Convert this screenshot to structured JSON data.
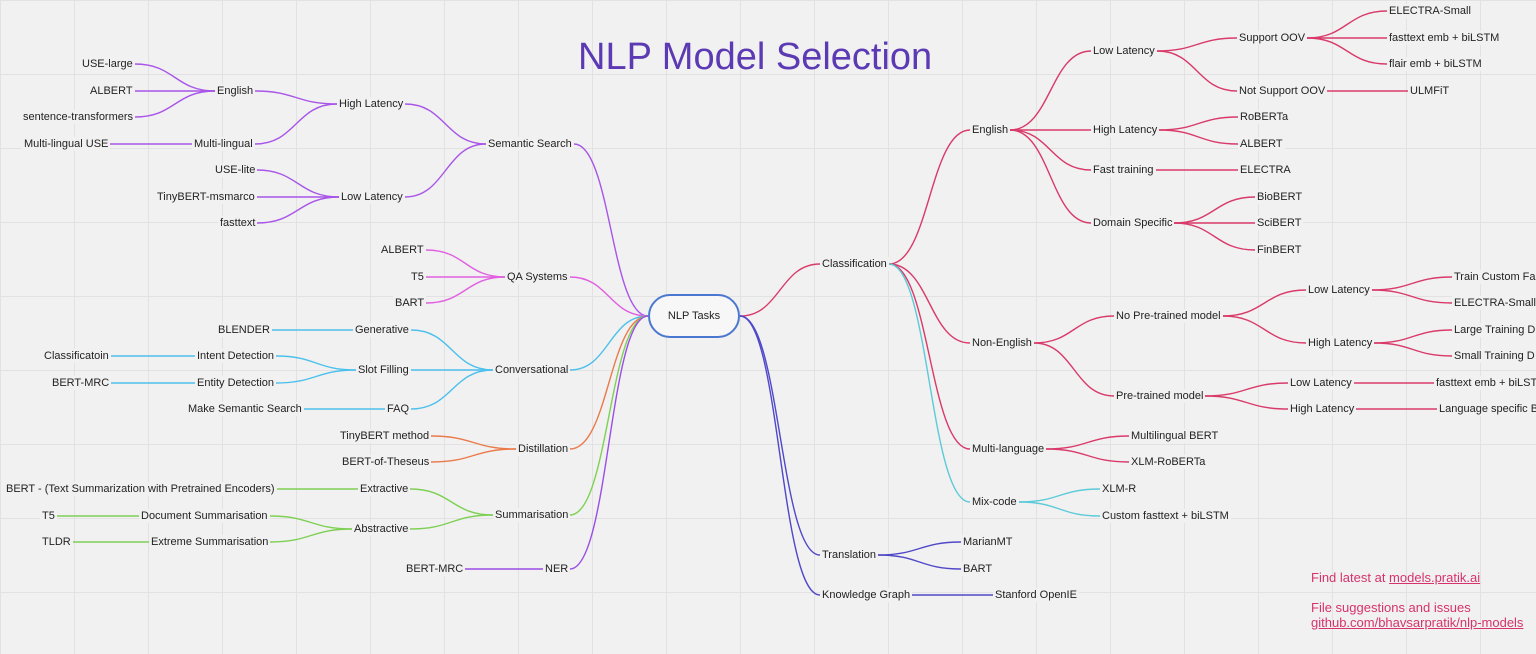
{
  "title": "NLP Model Selection",
  "colors": {
    "semantic": "#a855e8",
    "qa": "#e060e0",
    "conversational": "#4cc0ec",
    "distillation": "#ea7a4a",
    "summarisation": "#7ed054",
    "ner": "#9a4ee6",
    "classification": "#d93a6a",
    "mixcode": "#5ccad8",
    "translation": "#5048c8",
    "root_border": "#4a78d0",
    "title": "#5b3ab3",
    "footer": "#d6336c"
  },
  "mindmap": {
    "root": "NLP Tasks",
    "semantic_search": {
      "label": "Semantic Search",
      "high_latency": {
        "label": "High Latency",
        "english": {
          "label": "English",
          "items": [
            "USE-large",
            "ALBERT",
            "sentence-transformers"
          ]
        },
        "multilingual": {
          "label": "Multi-lingual",
          "items": [
            "Multi-lingual USE"
          ]
        }
      },
      "low_latency": {
        "label": "Low Latency",
        "items": [
          "USE-lite",
          "TinyBERT-msmarco",
          "fasttext"
        ]
      }
    },
    "qa_systems": {
      "label": "QA Systems",
      "items": [
        "ALBERT",
        "T5",
        "BART"
      ]
    },
    "conversational": {
      "label": "Conversational",
      "generative": {
        "label": "Generative",
        "items": [
          "BLENDER"
        ]
      },
      "slot_filling": {
        "label": "Slot Filling",
        "intent": {
          "label": "Intent Detection",
          "items": [
            "Classificatoin"
          ]
        },
        "entity": {
          "label": "Entity Detection",
          "items": [
            "BERT-MRC"
          ]
        }
      },
      "faq": {
        "label": "FAQ",
        "items": [
          "Make Semantic Search"
        ]
      }
    },
    "distillation": {
      "label": "Distillation",
      "items": [
        "TinyBERT method",
        "BERT-of-Theseus"
      ]
    },
    "summarisation": {
      "label": "Summarisation",
      "extractive": {
        "label": "Extractive",
        "items": [
          "BERT - (Text Summarization with Pretrained Encoders)"
        ]
      },
      "abstractive": {
        "label": "Abstractive",
        "document": {
          "label": "Document Summarisation",
          "items": [
            "T5"
          ]
        },
        "extreme": {
          "label": "Extreme Summarisation",
          "items": [
            "TLDR"
          ]
        }
      }
    },
    "ner": {
      "label": "NER",
      "items": [
        "BERT-MRC"
      ]
    },
    "classification": {
      "label": "Classification",
      "english": {
        "label": "English",
        "low_latency": {
          "label": "Low Latency",
          "support_oov": {
            "label": "Support OOV",
            "items": [
              "ELECTRA-Small",
              "fasttext emb + biLSTM",
              "flair emb + biLSTM"
            ]
          },
          "not_support_oov": {
            "label": "Not Support OOV",
            "items": [
              "ULMFiT"
            ]
          }
        },
        "high_latency": {
          "label": "High Latency",
          "items": [
            "RoBERTa",
            "ALBERT"
          ]
        },
        "fast_training": {
          "label": "Fast training",
          "items": [
            "ELECTRA"
          ]
        },
        "domain_specific": {
          "label": "Domain Specific",
          "items": [
            "BioBERT",
            "SciBERT",
            "FinBERT"
          ]
        }
      },
      "non_english": {
        "label": "Non-English",
        "no_pretrained": {
          "label": "No Pre-trained model",
          "low_latency": {
            "label": "Low Latency",
            "items": [
              "Train Custom Fas",
              "ELECTRA-Small"
            ]
          },
          "high_latency": {
            "label": "High Latency",
            "items": [
              "Large Training D",
              "Small Training D"
            ]
          }
        },
        "pretrained": {
          "label": "Pre-trained model",
          "low_latency": {
            "label": "Low Latency",
            "items": [
              "fasttext emb + biLST"
            ]
          },
          "high_latency": {
            "label": "High Latency",
            "items": [
              "Language specific BI"
            ]
          }
        }
      },
      "multi_language": {
        "label": "Multi-language",
        "items": [
          "Multilingual BERT",
          "XLM-RoBERTa"
        ]
      },
      "mix_code": {
        "label": "Mix-code",
        "items": [
          "XLM-R",
          "Custom fasttext + biLSTM"
        ]
      }
    },
    "translation": {
      "label": "Translation",
      "items": [
        "MarianMT",
        "BART"
      ]
    },
    "knowledge_graph": {
      "label": "Knowledge Graph",
      "items": [
        "Stanford OpenIE"
      ]
    }
  },
  "footer": {
    "find_text": "Find latest at ",
    "find_link": "models.pratik.ai",
    "suggest_text": "File suggestions and issues",
    "suggest_link": "github.com/bhavsarpratik/nlp-models"
  }
}
